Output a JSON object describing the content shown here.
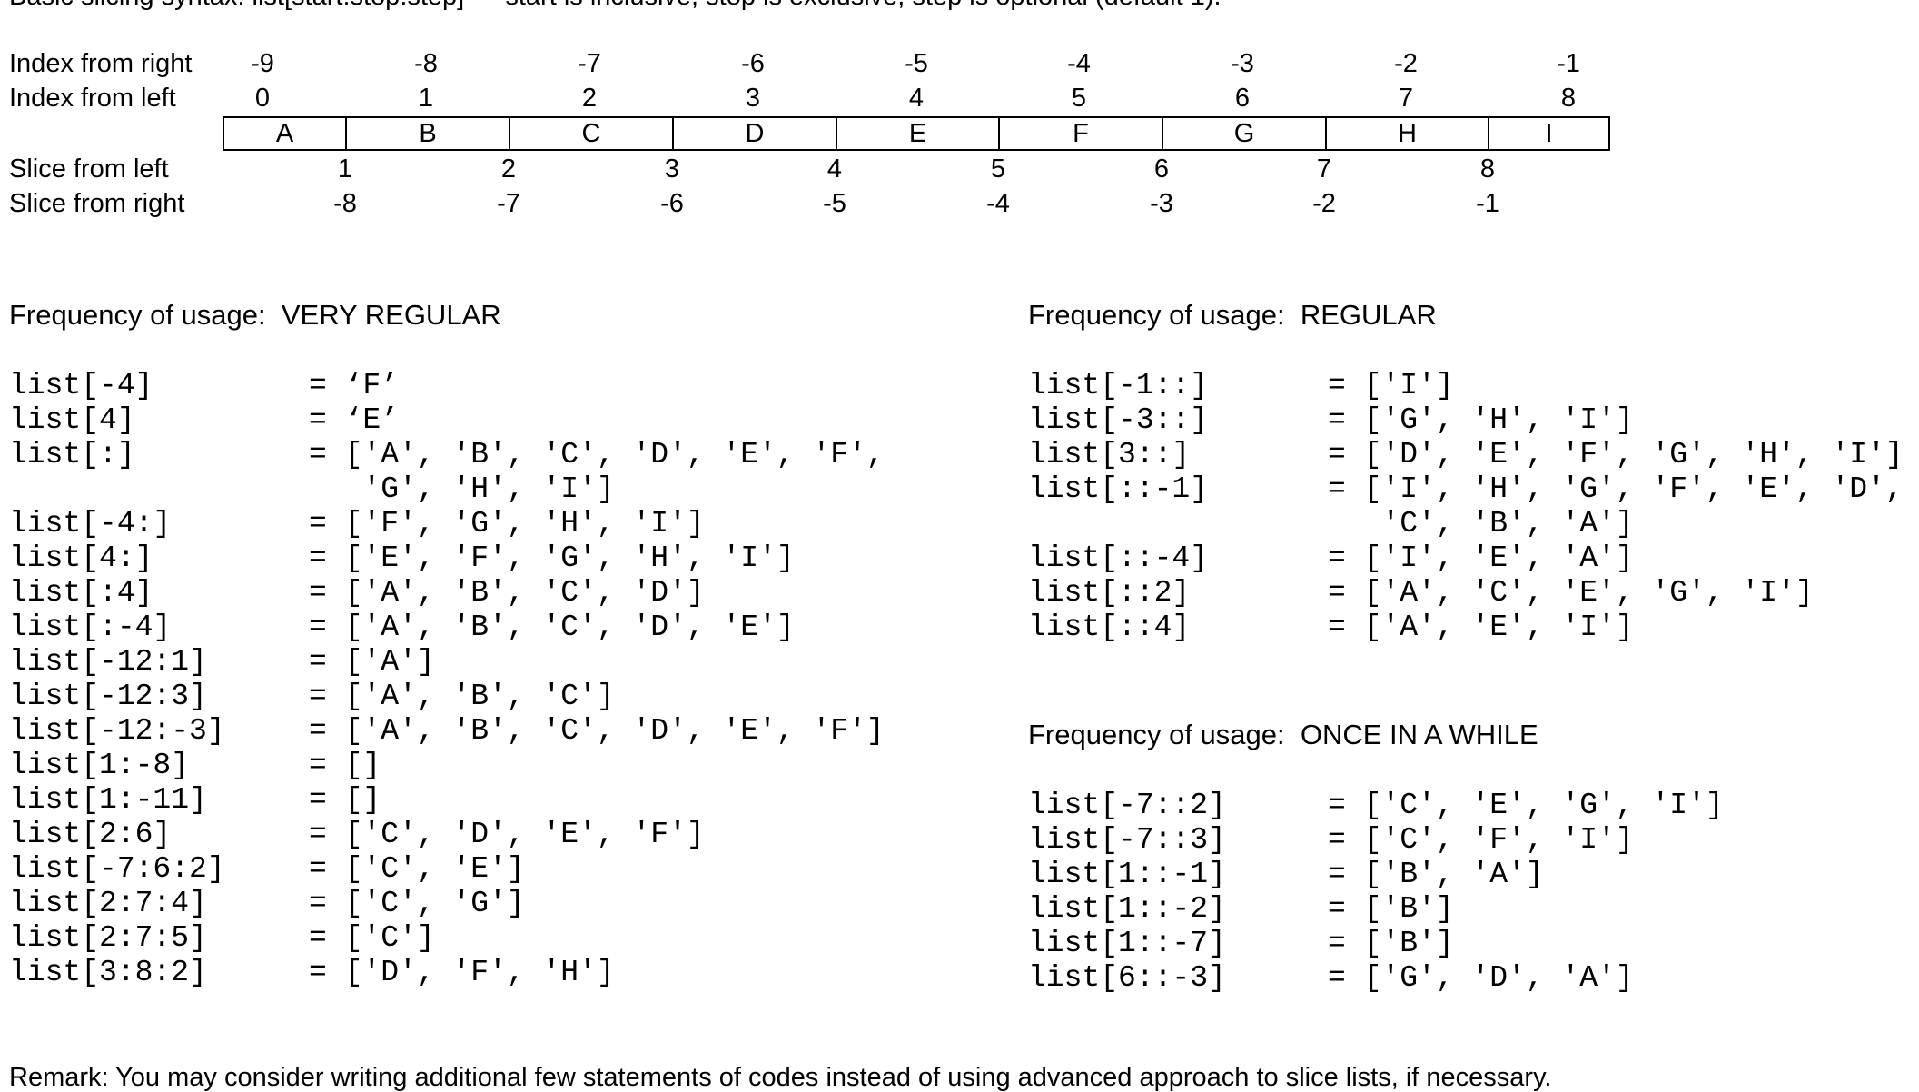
{
  "top_partial_line": "Basic slicing syntax: list[start:stop:step] — start is inclusive, stop is exclusive, step is optional (default 1).",
  "index_table": {
    "labels": {
      "index_from_right": "Index from right",
      "index_from_left": "Index from left",
      "slice_from_left": "Slice from left",
      "slice_from_right": "Slice from right"
    },
    "index_from_right": [
      "-9",
      "-8",
      "-7",
      "-6",
      "-5",
      "-4",
      "-3",
      "-2",
      "-1"
    ],
    "index_from_left": [
      "0",
      "1",
      "2",
      "3",
      "4",
      "5",
      "6",
      "7",
      "8"
    ],
    "cells": [
      "A",
      "B",
      "C",
      "D",
      "E",
      "F",
      "G",
      "H",
      "I"
    ],
    "slice_from_left": [
      "1",
      "2",
      "3",
      "4",
      "5",
      "6",
      "7",
      "8"
    ],
    "slice_from_right": [
      "-8",
      "-7",
      "-6",
      "-5",
      "-4",
      "-3",
      "-2",
      "-1"
    ]
  },
  "sections": {
    "very_regular": {
      "title": "Frequency of usage:  VERY REGULAR",
      "rows": [
        {
          "expr": "list[-4]",
          "result": "= ‘F’"
        },
        {
          "expr": "list[4]",
          "result": "= ‘E’"
        },
        {
          "expr": "list[:]",
          "result": "= ['A', 'B', 'C', 'D', 'E', 'F',"
        },
        {
          "expr": "",
          "result": "   'G', 'H', 'I']"
        },
        {
          "expr": "list[-4:]",
          "result": "= ['F', 'G', 'H', 'I']"
        },
        {
          "expr": "list[4:]",
          "result": "= ['E', 'F', 'G', 'H', 'I']"
        },
        {
          "expr": "list[:4]",
          "result": "= ['A', 'B', 'C', 'D']"
        },
        {
          "expr": "list[:-4]",
          "result": "= ['A', 'B', 'C', 'D', 'E']"
        },
        {
          "expr": "list[-12:1]",
          "result": "= ['A']"
        },
        {
          "expr": "list[-12:3]",
          "result": "= ['A', 'B', 'C']"
        },
        {
          "expr": "list[-12:-3]",
          "result": "= ['A', 'B', 'C', 'D', 'E', 'F']"
        },
        {
          "expr": "list[1:-8]",
          "result": "= []"
        },
        {
          "expr": "list[1:-11]",
          "result": "= []"
        },
        {
          "expr": "list[2:6]",
          "result": "= ['C', 'D', 'E', 'F']"
        },
        {
          "expr": "list[-7:6:2]",
          "result": "= ['C', 'E']"
        },
        {
          "expr": "list[2:7:4]",
          "result": "= ['C', 'G']"
        },
        {
          "expr": "list[2:7:5]",
          "result": "= ['C']"
        },
        {
          "expr": "list[3:8:2]",
          "result": "= ['D', 'F', 'H']"
        }
      ]
    },
    "regular": {
      "title": "Frequency of usage:  REGULAR",
      "rows": [
        {
          "expr": "list[-1::]",
          "result": "= ['I']"
        },
        {
          "expr": "list[-3::]",
          "result": "= ['G', 'H', 'I']"
        },
        {
          "expr": "list[3::]",
          "result": "= ['D', 'E', 'F', 'G', 'H', 'I']"
        },
        {
          "expr": "list[::-1]",
          "result": "= ['I', 'H', 'G', 'F', 'E', 'D',"
        },
        {
          "expr": "",
          "result": "   'C', 'B', 'A']"
        },
        {
          "expr": "list[::-4]",
          "result": "= ['I', 'E', 'A']"
        },
        {
          "expr": "list[::2]",
          "result": "= ['A', 'C', 'E', 'G', 'I']"
        },
        {
          "expr": "list[::4]",
          "result": "= ['A', 'E', 'I']"
        }
      ]
    },
    "once_in_a_while": {
      "title": "Frequency of usage:  ONCE IN A WHILE",
      "rows": [
        {
          "expr": "list[-7::2]",
          "result": "= ['C', 'E', 'G', 'I']"
        },
        {
          "expr": "list[-7::3]",
          "result": "= ['C', 'F', 'I']"
        },
        {
          "expr": "list[1::-1]",
          "result": "= ['B', 'A']"
        },
        {
          "expr": "list[1::-2]",
          "result": "= ['B']"
        },
        {
          "expr": "list[1::-7]",
          "result": "= ['B']"
        },
        {
          "expr": "list[6::-3]",
          "result": "= ['G', 'D', 'A']"
        }
      ]
    }
  },
  "bottom_partial_line": "Remark: You may consider writing additional few statements of codes instead of using advanced approach to slice lists, if necessary."
}
